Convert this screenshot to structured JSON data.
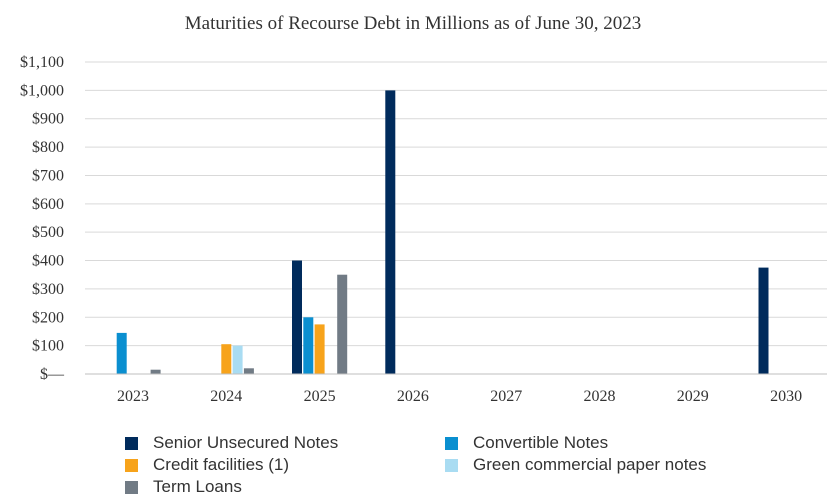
{
  "chart_data": {
    "type": "bar",
    "title": "Maturities of Recourse Debt in Millions as of June 30, 2023",
    "xlabel": "",
    "ylabel": "",
    "categories": [
      "2023",
      "2024",
      "2025",
      "2026",
      "2027",
      "2028",
      "2029",
      "2030"
    ],
    "ylim": [
      0,
      1100
    ],
    "ytick_values": [
      0,
      100,
      200,
      300,
      400,
      500,
      600,
      700,
      800,
      900,
      1000,
      1100
    ],
    "ytick_labels": [
      "$—",
      "$100",
      "$200",
      "$300",
      "$400",
      "$500",
      "$600",
      "$700",
      "$800",
      "$900",
      "$1,000",
      "$1,100"
    ],
    "grid": true,
    "legend_position": "bottom",
    "series": [
      {
        "name": "Senior Unsecured Notes",
        "color": "#002b5c",
        "values": [
          0,
          0,
          400,
          1000,
          0,
          0,
          0,
          375
        ]
      },
      {
        "name": "Convertible Notes",
        "color": "#0a8fd0",
        "values": [
          145,
          0,
          200,
          0,
          0,
          0,
          0,
          0
        ]
      },
      {
        "name": "Credit facilities (1)",
        "color": "#f7a31b",
        "values": [
          0,
          105,
          175,
          0,
          0,
          0,
          0,
          0
        ]
      },
      {
        "name": "Green commercial paper notes",
        "color": "#a9dcf2",
        "values": [
          0,
          100,
          0,
          0,
          0,
          0,
          0,
          0
        ]
      },
      {
        "name": "Term Loans",
        "color": "#717b85",
        "values": [
          15,
          20,
          350,
          0,
          0,
          0,
          0,
          0
        ]
      }
    ]
  }
}
